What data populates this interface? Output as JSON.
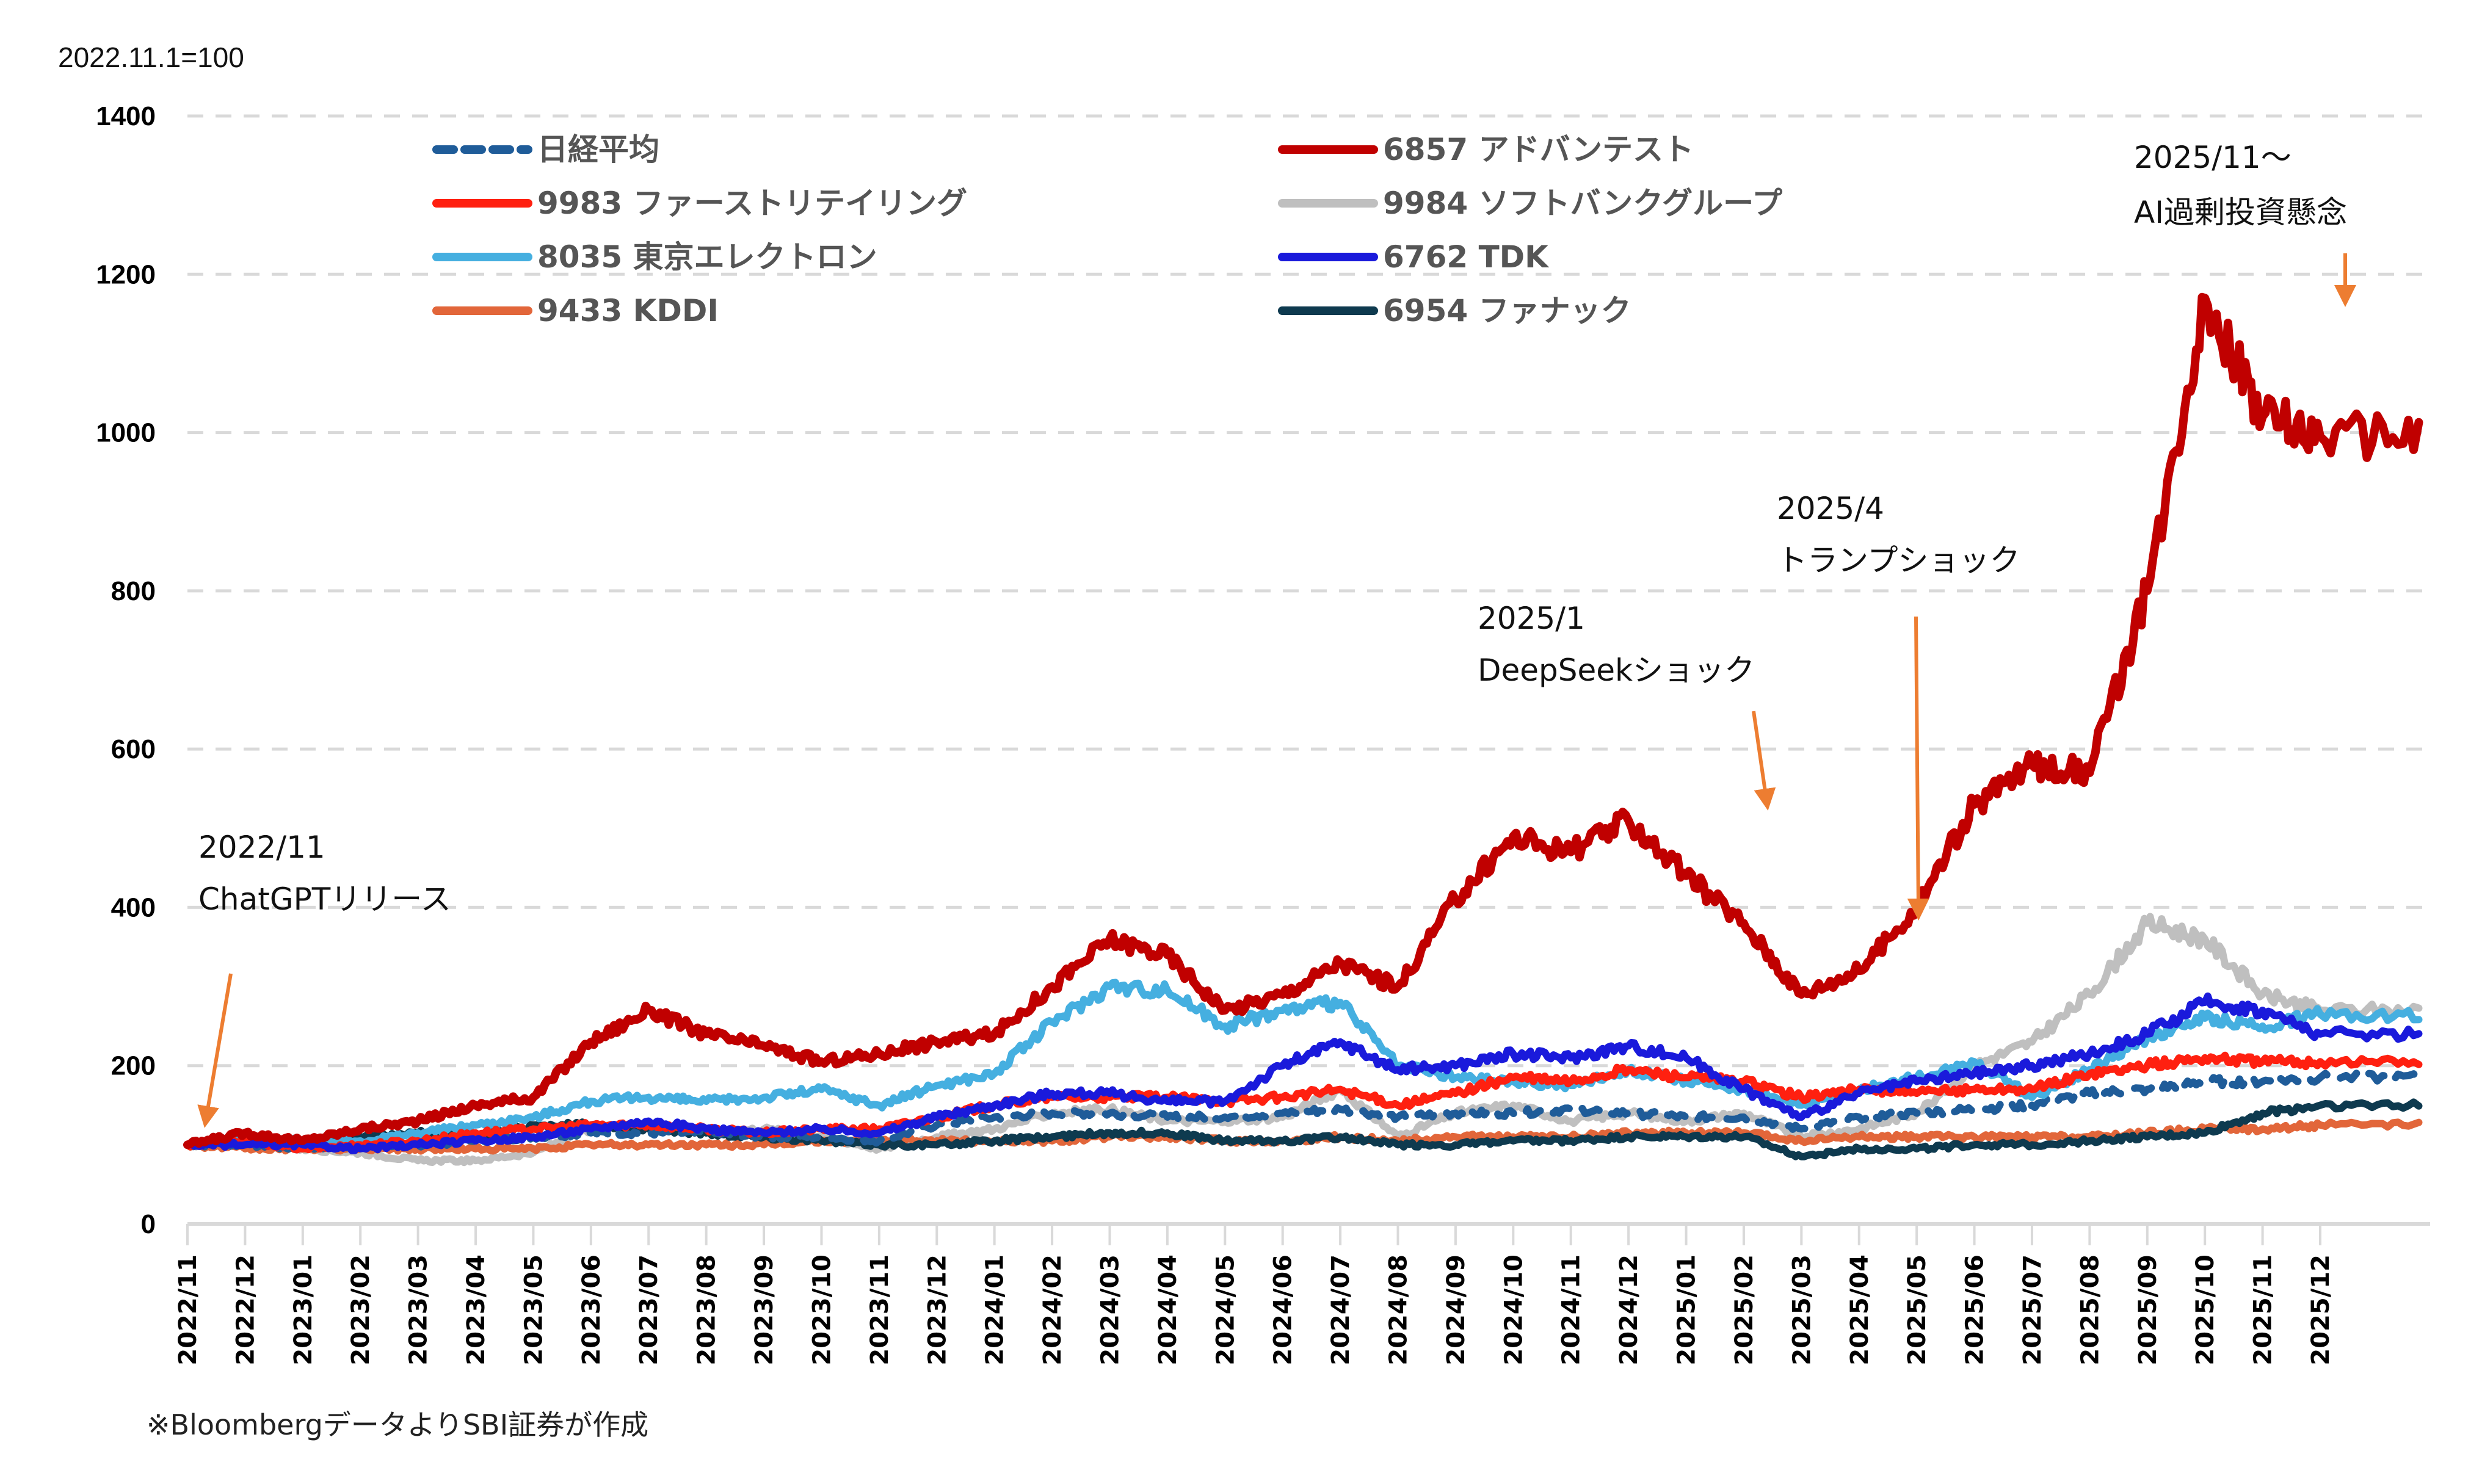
{
  "chart_data": {
    "type": "line",
    "title": "",
    "unit_label": "2022.11.1=100",
    "xlabel": "",
    "ylabel": "",
    "ylim": [
      0,
      1400
    ],
    "yticks": [
      0,
      200,
      400,
      600,
      800,
      1000,
      1200,
      1400
    ],
    "grid": true,
    "legend_position": "top",
    "x": [
      "2022/11",
      "2022/12",
      "2023/01",
      "2023/02",
      "2023/03",
      "2023/04",
      "2023/05",
      "2023/06",
      "2023/07",
      "2023/08",
      "2023/09",
      "2023/10",
      "2023/11",
      "2023/12",
      "2024/01",
      "2024/02",
      "2024/03",
      "2024/04",
      "2024/05",
      "2024/06",
      "2024/07",
      "2024/08",
      "2024/09",
      "2024/10",
      "2024/11",
      "2024/12",
      "2025/01",
      "2025/02",
      "2025/03",
      "2025/04",
      "2025/05",
      "2025/06",
      "2025/07",
      "2025/08",
      "2025/09",
      "2025/10",
      "2025/11",
      "2025/12"
    ],
    "x_end_label": "2025/12 end",
    "series": [
      {
        "name": "日経平均",
        "color": "#1F5C99",
        "dashed": true,
        "values": [
          100,
          100,
          95,
          100,
          100,
          105,
          110,
          115,
          115,
          115,
          110,
          110,
          105,
          125,
          135,
          140,
          140,
          135,
          135,
          140,
          145,
          135,
          140,
          140,
          145,
          140,
          135,
          135,
          120,
          135,
          140,
          145,
          150,
          165,
          170,
          180,
          180,
          185
        ]
      },
      {
        "name": "9983 ファーストリテイリング",
        "color": "#FF2010",
        "dashed": false,
        "values": [
          100,
          105,
          95,
          100,
          105,
          115,
          120,
          125,
          125,
          120,
          115,
          120,
          120,
          135,
          150,
          160,
          160,
          160,
          155,
          160,
          170,
          150,
          165,
          185,
          180,
          195,
          185,
          180,
          160,
          170,
          165,
          170,
          170,
          190,
          200,
          210,
          205,
          205
        ]
      },
      {
        "name": "8035 東京エレクトロン",
        "color": "#45AFE0",
        "dashed": false,
        "values": [
          100,
          110,
          105,
          105,
          115,
          125,
          135,
          155,
          160,
          155,
          160,
          170,
          150,
          175,
          190,
          255,
          300,
          295,
          250,
          270,
          280,
          200,
          185,
          180,
          175,
          195,
          180,
          170,
          150,
          170,
          185,
          205,
          160,
          195,
          235,
          260,
          250,
          265
        ]
      },
      {
        "name": "9433 KDDI",
        "color": "#E2663A",
        "dashed": false,
        "values": [
          100,
          95,
          95,
          95,
          95,
          95,
          95,
          100,
          100,
          100,
          100,
          105,
          105,
          105,
          105,
          105,
          110,
          110,
          105,
          105,
          110,
          105,
          110,
          110,
          110,
          115,
          115,
          115,
          105,
          110,
          110,
          110,
          110,
          110,
          115,
          120,
          120,
          125
        ]
      },
      {
        "name": "6857 アドバンテスト",
        "color": "#C00000",
        "dashed": false,
        "values": [
          100,
          115,
          105,
          120,
          130,
          150,
          160,
          230,
          270,
          240,
          225,
          205,
          215,
          230,
          240,
          300,
          360,
          340,
          270,
          290,
          330,
          300,
          410,
          490,
          470,
          510,
          440,
          380,
          290,
          320,
          400,
          530,
          580,
          570,
          800,
          1170,
          1020,
          995
        ]
      },
      {
        "name": "9984 ソフトバンクグループ",
        "color": "#BFBFBF",
        "dashed": false,
        "values": [
          100,
          100,
          95,
          90,
          80,
          80,
          90,
          120,
          125,
          115,
          120,
          110,
          95,
          110,
          120,
          140,
          145,
          130,
          130,
          135,
          170,
          110,
          140,
          150,
          130,
          140,
          130,
          140,
          110,
          120,
          140,
          200,
          230,
          290,
          380,
          360,
          290,
          270
        ]
      },
      {
        "name": "6762 TDK",
        "color": "#1A1ADB",
        "dashed": false,
        "values": [
          100,
          100,
          100,
          95,
          100,
          105,
          110,
          120,
          130,
          120,
          115,
          120,
          115,
          135,
          150,
          165,
          165,
          155,
          155,
          200,
          230,
          195,
          200,
          215,
          210,
          225,
          210,
          170,
          135,
          165,
          180,
          190,
          200,
          215,
          240,
          280,
          270,
          240
        ]
      },
      {
        "name": "6954 ファナック",
        "color": "#0E3A4F",
        "dashed": false,
        "values": [
          100,
          105,
          100,
          110,
          115,
          110,
          125,
          125,
          120,
          115,
          110,
          105,
          100,
          100,
          105,
          110,
          115,
          115,
          105,
          105,
          110,
          100,
          100,
          105,
          105,
          110,
          110,
          110,
          85,
          95,
          95,
          100,
          100,
          105,
          110,
          115,
          140,
          150
        ]
      }
    ],
    "annotations": [
      {
        "date": "2022/11",
        "line1": "2022/11",
        "line2": "ChatGPTリリース",
        "target_value": 105
      },
      {
        "date": "2025/1",
        "line1": "2025/1",
        "line2": "DeepSeekショック",
        "target_value": 530
      },
      {
        "date": "2025/4",
        "line1": "2025/4",
        "line2": "トランプショック",
        "target_value": 390
      },
      {
        "date": "2025/11",
        "line1": "2025/11〜",
        "line2": "AI過剰投資懸念",
        "target_value": 1170
      }
    ],
    "source_note": "※BloombergデータよりSBI証券が作成",
    "annotation_arrow_color": "#ED7D31",
    "grid_color": "#D9D9D9"
  }
}
